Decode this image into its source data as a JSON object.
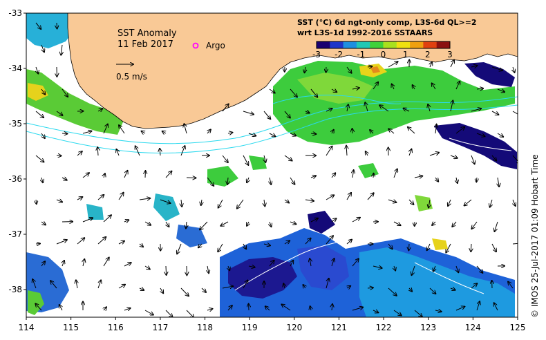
{
  "title": {
    "line1": "SST Anomaly",
    "line2": "11 Feb 2017"
  },
  "legend": {
    "argo_label": "Argo",
    "argo_color": "#ff00ff",
    "vector_label": "0.5 m/s"
  },
  "colorbar": {
    "line1": "SST (°C) 6d ngt-only comp, L3S-6d QL>=2",
    "line2": "wrt L3S-1d 1992-2016 SSTAARS",
    "ticks": [
      "-3",
      "-2",
      "-1",
      "0",
      "1",
      "2",
      "3"
    ],
    "range": [
      -3,
      3
    ],
    "colors": [
      "#1a0070",
      "#1f35c8",
      "#1e8fe0",
      "#22c8b4",
      "#3fd23a",
      "#a8e01e",
      "#f0e010",
      "#f0a010",
      "#e04010",
      "#8b1010"
    ]
  },
  "credit": "© IMOS 25-Jul-2017 01:09 Hobart Time",
  "axes": {
    "x_ticks": [
      "114",
      "115",
      "116",
      "117",
      "118",
      "119",
      "120",
      "121",
      "122",
      "123",
      "124",
      "125"
    ],
    "y_ticks": [
      "-33",
      "-34",
      "-35",
      "-36",
      "-37",
      "-38"
    ],
    "lon_range": [
      114,
      125
    ],
    "lat_range": [
      -38.5,
      -33
    ]
  },
  "colors": {
    "land": "#f9c996",
    "ocean": "#ffffff",
    "contour": "#29d9ee",
    "altimetry": "#ffffff"
  }
}
